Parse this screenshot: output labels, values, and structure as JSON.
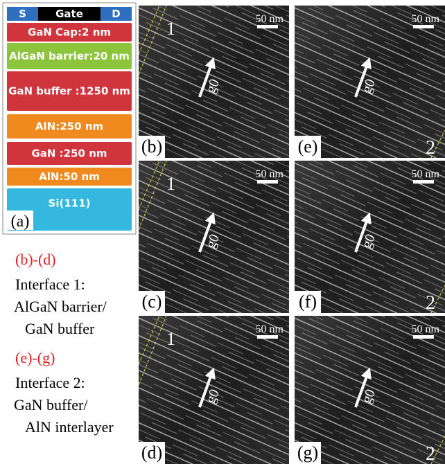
{
  "stack": {
    "contacts": [
      "S",
      "Gate",
      "D"
    ],
    "layers": [
      "GaN Cap:2 nm",
      "AlGaN barrier:20 nm",
      "GaN buffer :1250 nm",
      "AlN:250 nm",
      "GaN :250 nm",
      "AlN:50 nm",
      "Si(111)"
    ],
    "label": "(a)"
  },
  "legend": [
    {
      "range": "(b)-(d)",
      "lines": [
        "Interface 1:",
        "AlGaN barrier/",
        "GaN buffer"
      ]
    },
    {
      "range": "(e)-(g)",
      "lines": [
        "Interface 2:",
        "GaN buffer/",
        "AlN interlayer"
      ]
    }
  ],
  "panels": [
    {
      "label": "(b)",
      "scale": "50 nm",
      "vector": "g0",
      "interface": "1"
    },
    {
      "label": "(c)",
      "scale": "50 nm",
      "vector": "g0",
      "interface": "1"
    },
    {
      "label": "(d)",
      "scale": "50 nm",
      "vector": "g0",
      "interface": "1"
    },
    {
      "label": "(e)",
      "scale": "50 nm",
      "vector": "g0",
      "interface": "2"
    },
    {
      "label": "(f)",
      "scale": "50 nm",
      "vector": "g0",
      "interface": "2"
    },
    {
      "label": "(g)",
      "scale": "50 nm",
      "vector": "g0",
      "interface": "2"
    }
  ]
}
